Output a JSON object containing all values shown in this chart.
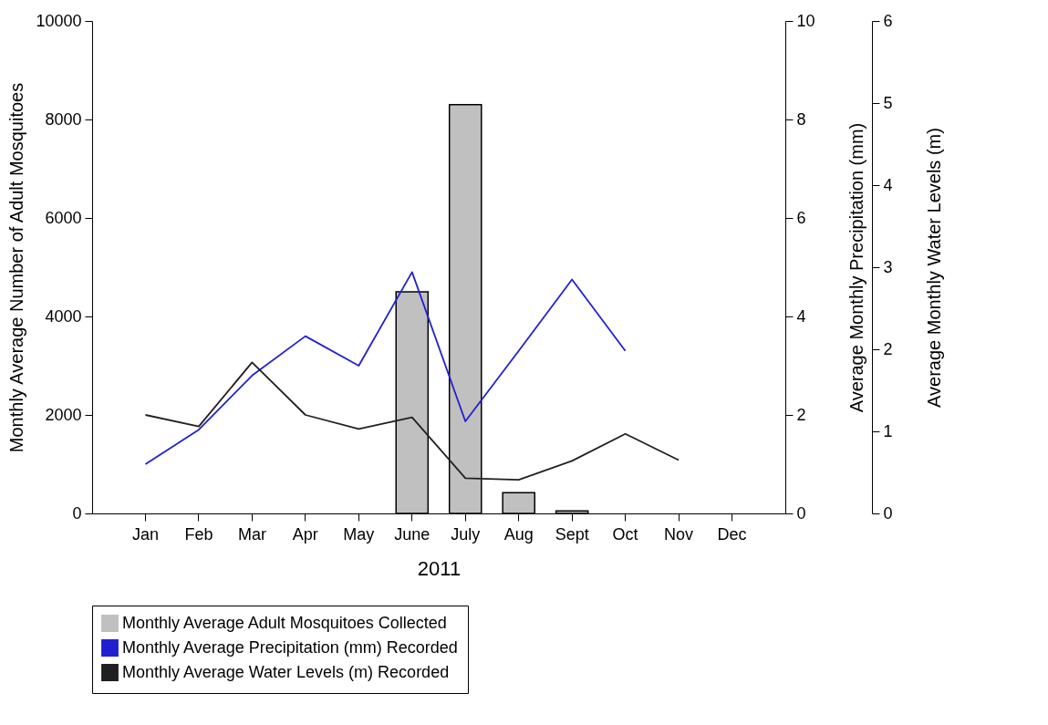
{
  "chart_data": {
    "type": "bar",
    "xlabel": "2011",
    "ylabel": "Monthly Average Number of Adult Mosquitoes",
    "y2label": "Average Monthly Precipitation (mm)",
    "y3label": "Average Monthly Water Levels (m)",
    "categories": [
      "Jan",
      "Feb",
      "Mar",
      "Apr",
      "May",
      "June",
      "July",
      "Aug",
      "Sept",
      "Oct",
      "Nov",
      "Dec"
    ],
    "series": [
      {
        "name": "Monthly Average Adult Mosquitoes Collected",
        "type": "bar",
        "color": "#c0c0c0",
        "values": [
          null,
          null,
          null,
          null,
          null,
          4500,
          8300,
          420,
          50,
          null,
          null,
          null
        ]
      },
      {
        "name": "Monthly Average Precipitation (mm) Recorded",
        "type": "line",
        "axis": "y2",
        "color": "#2020d0",
        "values": [
          1.0,
          1.7,
          2.8,
          3.6,
          3.0,
          4.9,
          1.87,
          3.3,
          4.75,
          3.3,
          null,
          null
        ]
      },
      {
        "name": "Monthly Average Water Levels (m) Recorded",
        "type": "line",
        "axis": "y3",
        "color": "#202020",
        "values": [
          1.2,
          1.06,
          1.84,
          1.2,
          1.03,
          1.17,
          0.43,
          0.41,
          0.64,
          0.97,
          0.65,
          null
        ]
      }
    ],
    "ylim": [
      0,
      10000
    ],
    "yticks": [
      0,
      2000,
      4000,
      6000,
      8000,
      10000
    ],
    "y2lim": [
      0,
      10
    ],
    "y2ticks": [
      0,
      2,
      4,
      6,
      8,
      10
    ],
    "y3lim": [
      0,
      6
    ],
    "y3ticks": [
      0,
      1,
      2,
      3,
      4,
      5,
      6
    ],
    "legend": "bottom",
    "grid": false
  }
}
